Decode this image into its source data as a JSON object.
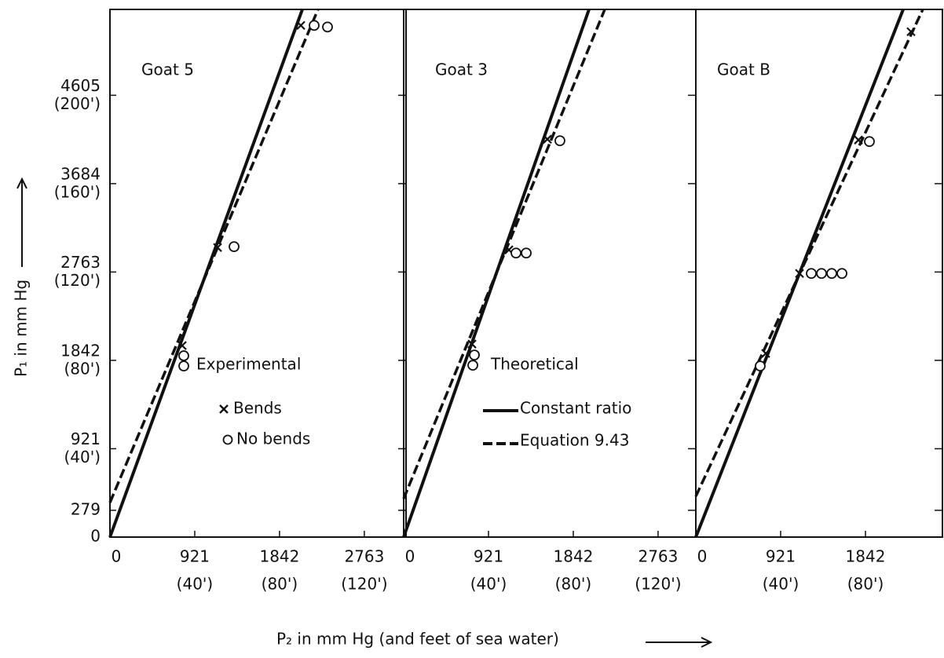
{
  "y_axis": {
    "label": "P₁ in mm Hg",
    "ylim": [
      0,
      5500
    ],
    "yticks": [
      0,
      279,
      {
        "value": 921,
        "label": "921",
        "feet_label": "(40')"
      },
      {
        "value": 1842,
        "label": "1842",
        "feet_label": "(80')"
      },
      {
        "value": 2763,
        "label": "2763",
        "feet_label": "(120')"
      },
      {
        "value": 3684,
        "label": "3684",
        "feet_label": "(160')"
      },
      {
        "value": 4605,
        "label": "4605",
        "feet_label": "(200')"
      }
    ]
  },
  "x_label": "P₂ in mm Hg (and feet of sea water)",
  "legend": {
    "experimental": {
      "title": "Experimental",
      "items": [
        "Bends",
        "No bends"
      ]
    },
    "theoretical": {
      "title": "Theoretical",
      "items": [
        "Constant ratio",
        "Equation 9.43"
      ]
    }
  },
  "chart_data": [
    {
      "type": "line",
      "title": "Goat 5",
      "xlim": [
        0,
        3216
      ],
      "xticks": [
        0,
        {
          "value": 921,
          "label": "921",
          "feet_label": "(40')"
        },
        {
          "value": 1842,
          "label": "1842",
          "feet_label": "(80')"
        },
        {
          "value": 2763,
          "label": "2763",
          "feet_label": "(120')"
        }
      ],
      "series": [
        {
          "style": "solid",
          "x": [
            0,
            2090
          ],
          "values": [
            0,
            5500
          ]
        },
        {
          "style": "dashed",
          "x": [
            0,
            2260
          ],
          "values": [
            360,
            5500
          ]
        },
        {
          "style": "x",
          "x": [
            785,
            1169,
            2073
          ],
          "values": [
            1996,
            3018,
            5333
          ]
        },
        {
          "style": "o",
          "x": [
            802,
            802,
            1348,
            2218,
            2363
          ],
          "values": [
            1890,
            1783,
            3027,
            5333,
            5317
          ]
        }
      ]
    },
    {
      "type": "line",
      "title": "Goat 3",
      "xlim": [
        0,
        3173
      ],
      "xticks": [
        0,
        {
          "value": 921,
          "label": "921",
          "feet_label": "(40')"
        },
        {
          "value": 1842,
          "label": "1842",
          "feet_label": "(80')"
        },
        {
          "value": 2763,
          "label": "2763",
          "feet_label": "(120')"
        }
      ],
      "series": [
        {
          "style": "solid",
          "x": [
            0,
            2013
          ],
          "values": [
            0,
            5500
          ]
        },
        {
          "style": "dashed",
          "x": [
            0,
            2184
          ],
          "values": [
            401,
            5500
          ]
        },
        {
          "style": "x",
          "x": [
            742,
            1143,
            1561
          ],
          "values": [
            2012,
            2994,
            4147
          ]
        },
        {
          "style": "o",
          "x": [
            768,
            751,
            1220,
            1331,
            1697
          ],
          "values": [
            1898,
            1791,
            2961,
            2961,
            4131
          ]
        }
      ]
    },
    {
      "type": "line",
      "title": "Goat B",
      "xlim": [
        0,
        2678
      ],
      "xticks": [
        0,
        {
          "value": 921,
          "label": "921",
          "feet_label": "(40')"
        },
        {
          "value": 1842,
          "label": "1842",
          "feet_label": "(80')"
        }
      ],
      "series": [
        {
          "style": "solid",
          "x": [
            0,
            2252
          ],
          "values": [
            0,
            5500
          ]
        },
        {
          "style": "dashed",
          "x": [
            0,
            2465
          ],
          "values": [
            425,
            5500
          ]
        },
        {
          "style": "x",
          "x": [
            759,
            1126,
            1766,
            2337
          ],
          "values": [
            1914,
            2748,
            4139,
            5268
          ]
        },
        {
          "style": "o",
          "x": [
            699,
            1254,
            1365,
            1476,
            1587,
            1885
          ],
          "values": [
            1783,
            2748,
            2748,
            2748,
            2748,
            4123
          ]
        }
      ]
    }
  ]
}
